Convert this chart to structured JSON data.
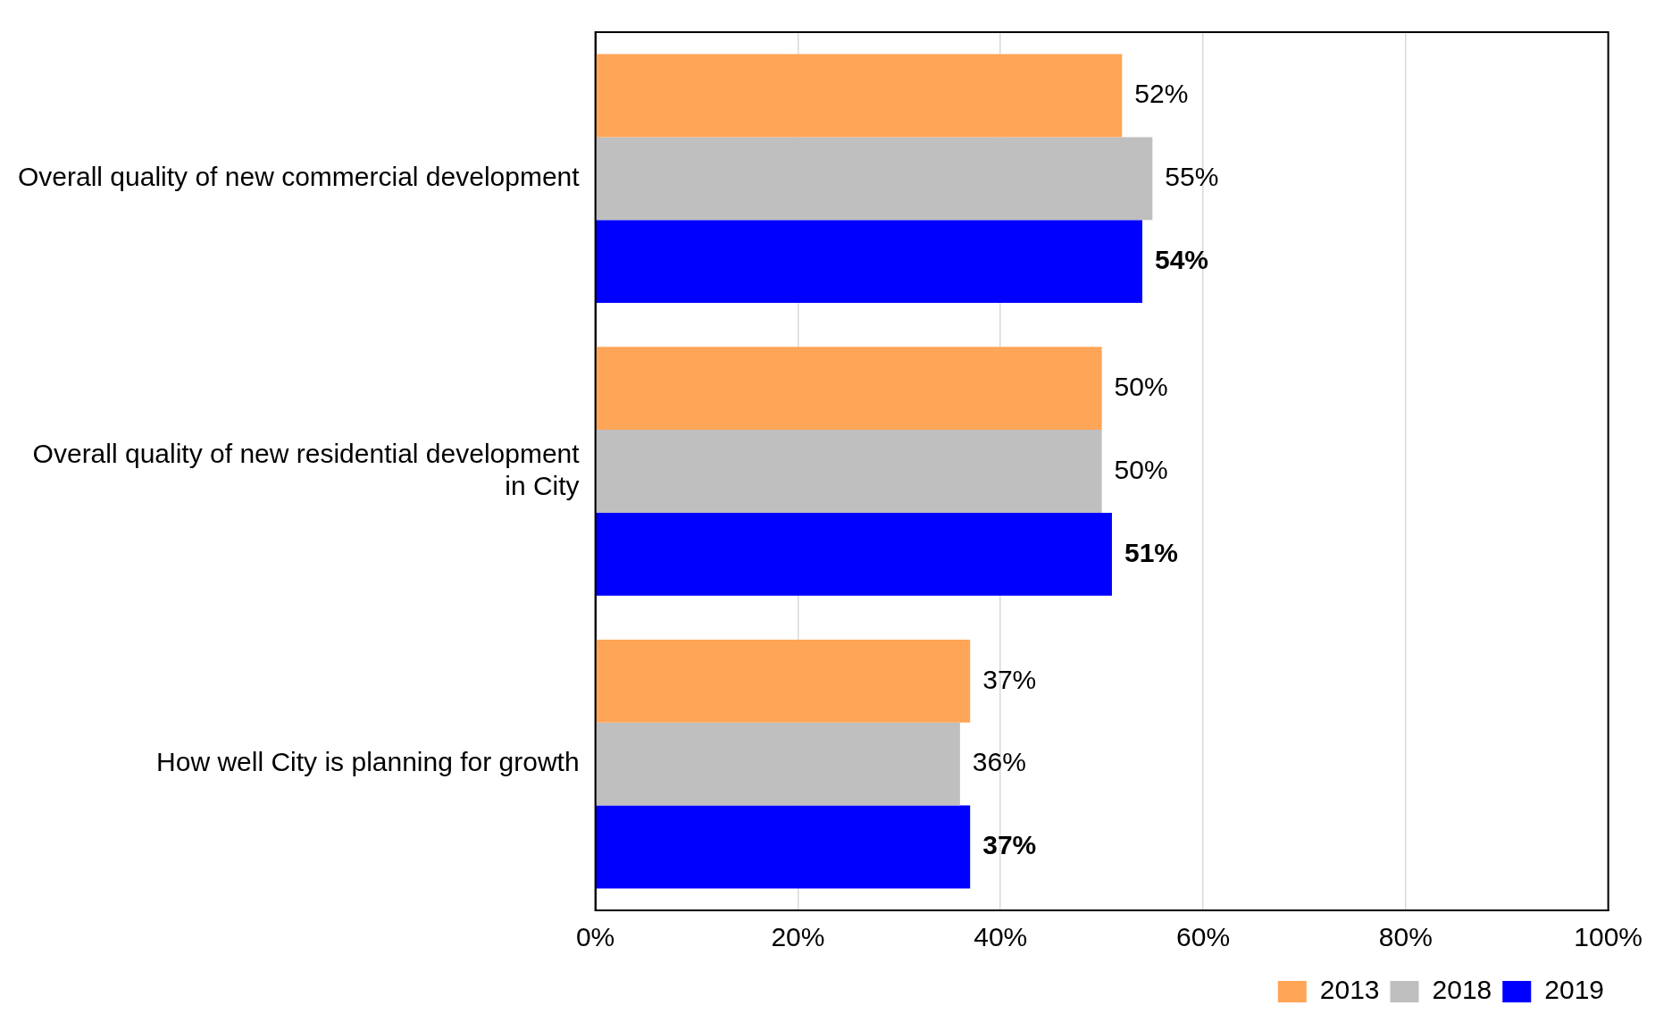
{
  "chart_data": {
    "type": "bar",
    "orientation": "horizontal",
    "categories": [
      "Overall quality of new commercial development",
      "Overall quality of new residential development in City",
      "How well City is planning for growth"
    ],
    "series": [
      {
        "name": "2013",
        "color": "#ffa557",
        "values": [
          52,
          50,
          37
        ],
        "value_labels": [
          "52%",
          "50%",
          "37%"
        ]
      },
      {
        "name": "2018",
        "color": "#bfbfbf",
        "values": [
          55,
          50,
          36
        ],
        "value_labels": [
          "55%",
          "50%",
          "36%"
        ]
      },
      {
        "name": "2019",
        "color": "#0000ff",
        "values": [
          54,
          51,
          37
        ],
        "value_labels": [
          "54%",
          "51%",
          "37%"
        ]
      }
    ],
    "xlim": [
      0,
      100
    ],
    "xticks": [
      {
        "value": 0,
        "label": "0%"
      },
      {
        "value": 20,
        "label": "20%"
      },
      {
        "value": 40,
        "label": "40%"
      },
      {
        "value": 60,
        "label": "60%"
      },
      {
        "value": 80,
        "label": "80%"
      },
      {
        "value": 100,
        "label": "100%"
      }
    ],
    "grid": "x",
    "legend": "bottom right"
  }
}
